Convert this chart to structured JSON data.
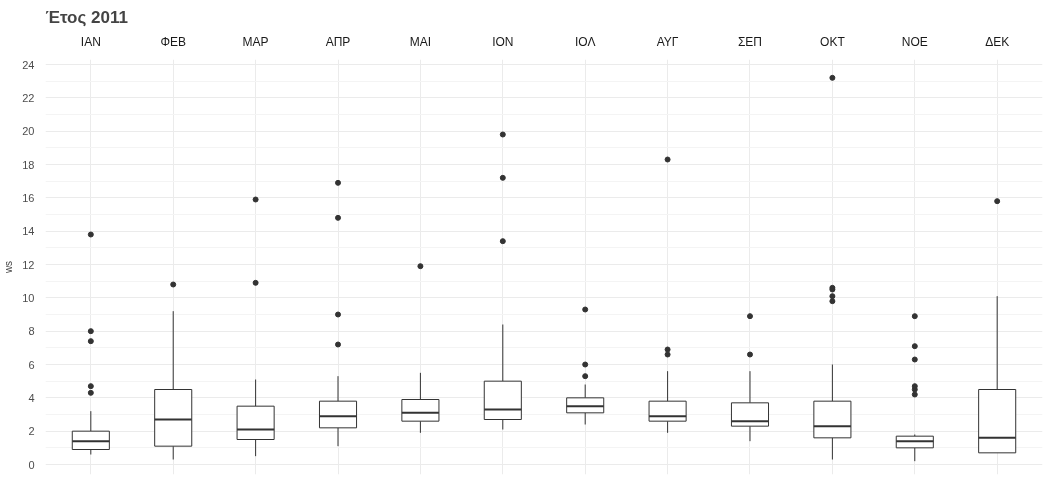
{
  "chart_data": {
    "type": "box",
    "title": "Έτος 2011",
    "ylabel": "ws",
    "categories": [
      "ΙΑΝ",
      "ΦΕΒ",
      "ΜΑΡ",
      "ΑΠΡ",
      "ΜΑΙ",
      "ΙΟΝ",
      "ΙΟΛ",
      "ΑΥΓ",
      "ΣΕΠ",
      "ΟΚΤ",
      "ΝΟΕ",
      "ΔΕΚ"
    ],
    "boxes": [
      {
        "low": 0.6,
        "q1": 0.9,
        "median": 1.4,
        "q3": 2.0,
        "high": 3.2,
        "outliers": [
          4.3,
          4.7,
          7.4,
          8.0,
          13.8
        ]
      },
      {
        "low": 0.3,
        "q1": 1.1,
        "median": 2.7,
        "q3": 4.5,
        "high": 9.2,
        "outliers": [
          10.8
        ]
      },
      {
        "low": 0.5,
        "q1": 1.5,
        "median": 2.1,
        "q3": 3.5,
        "high": 5.1,
        "outliers": [
          10.9,
          15.9
        ]
      },
      {
        "low": 1.1,
        "q1": 2.2,
        "median": 2.9,
        "q3": 3.8,
        "high": 5.3,
        "outliers": [
          7.2,
          9.0,
          14.8,
          16.9
        ]
      },
      {
        "low": 1.9,
        "q1": 2.6,
        "median": 3.1,
        "q3": 3.9,
        "high": 5.5,
        "outliers": [
          11.9
        ]
      },
      {
        "low": 2.1,
        "q1": 2.7,
        "median": 3.3,
        "q3": 5.0,
        "high": 8.4,
        "outliers": [
          13.4,
          17.2,
          19.8
        ]
      },
      {
        "low": 2.4,
        "q1": 3.1,
        "median": 3.5,
        "q3": 4.0,
        "high": 4.8,
        "outliers": [
          5.3,
          6.0,
          9.3
        ]
      },
      {
        "low": 1.9,
        "q1": 2.6,
        "median": 2.9,
        "q3": 3.8,
        "high": 5.6,
        "outliers": [
          6.6,
          6.9,
          18.3
        ]
      },
      {
        "low": 1.4,
        "q1": 2.3,
        "median": 2.6,
        "q3": 3.7,
        "high": 5.6,
        "outliers": [
          6.6,
          8.9
        ]
      },
      {
        "low": 0.3,
        "q1": 1.6,
        "median": 2.3,
        "q3": 3.8,
        "high": 6.0,
        "outliers": [
          9.8,
          10.1,
          10.5,
          10.6,
          23.2
        ]
      },
      {
        "low": 0.2,
        "q1": 1.0,
        "median": 1.4,
        "q3": 1.7,
        "high": 1.8,
        "outliers": [
          4.2,
          4.5,
          4.7,
          6.3,
          7.1,
          8.9
        ]
      },
      {
        "low": 0.7,
        "q1": 0.7,
        "median": 1.6,
        "q3": 4.5,
        "high": 10.1,
        "outliers": [
          15.8
        ]
      }
    ],
    "ylim": [
      -0.6,
      24.3
    ],
    "yticks": [
      0,
      2,
      4,
      6,
      8,
      10,
      12,
      14,
      16,
      18,
      20,
      22,
      24
    ],
    "grid": true
  }
}
